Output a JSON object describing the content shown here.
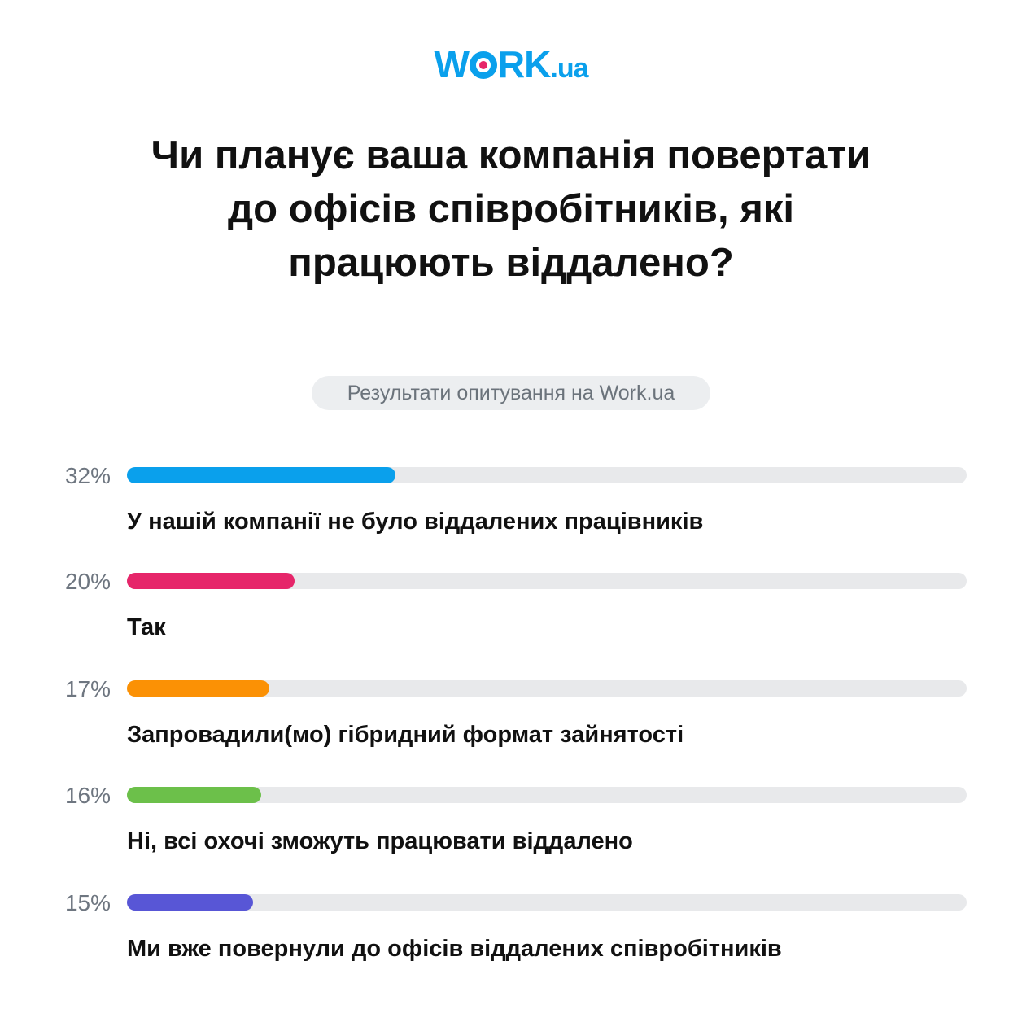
{
  "brand": {
    "logo_main": "W",
    "logo_rest": "RK",
    "logo_suffix": ".ua",
    "color": "#0aa0ec",
    "dot_color": "#e6266a"
  },
  "title": "Чи планує ваша компанія повертати до офісів співробітників, які працюють віддалено?",
  "subtitle": "Результати опитування на Work.ua",
  "chart_data": {
    "type": "bar",
    "orientation": "horizontal",
    "title": "Чи планує ваша компанія повертати до офісів співробітників, які працюють віддалено?",
    "subtitle": "Результати опитування на Work.ua",
    "categories": [
      "У нашій компанії не було віддалених працівників",
      "Так",
      "Запровадили(мо) гібридний формат зайнятості",
      "Ні, всі охочі зможуть працювати віддалено",
      "Ми вже повернули до офісів віддалених співробітників"
    ],
    "values": [
      32,
      20,
      17,
      16,
      15
    ],
    "value_labels": [
      "32%",
      "20%",
      "17%",
      "16%",
      "15%"
    ],
    "colors": [
      "#0aa0ec",
      "#e6266a",
      "#fb9105",
      "#6cc04a",
      "#5856d6"
    ],
    "unit": "%",
    "xlim": [
      0,
      100
    ],
    "grid": false,
    "legend": null
  }
}
